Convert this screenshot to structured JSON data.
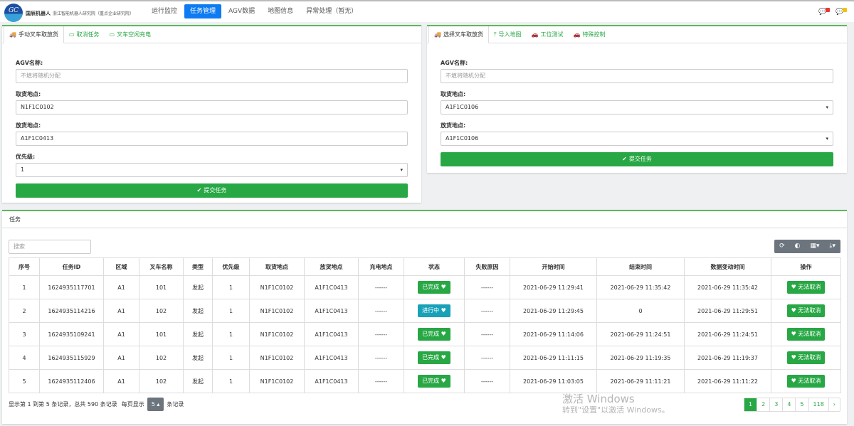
{
  "header": {
    "logo_text": "GC",
    "brand": "国辰机器人",
    "subtitle": "浙江智能机器人研究院（重点企业研究院）",
    "nav": [
      {
        "label": "运行监控"
      },
      {
        "label": "任务管理",
        "active": true
      },
      {
        "label": "AGV数据"
      },
      {
        "label": "地图信息"
      },
      {
        "label": "异常处理（暂无）"
      }
    ],
    "notifications": [
      {
        "icon": "message-icon",
        "color": "#e53935"
      },
      {
        "icon": "comment-icon",
        "color": "#f4c20d"
      }
    ]
  },
  "left_panel": {
    "tabs": [
      {
        "label": "手动叉车取放货",
        "icon": "truck-icon",
        "active": true
      },
      {
        "label": "取消任务",
        "icon": "battery-icon"
      },
      {
        "label": "叉车空闲充电",
        "icon": "battery-icon"
      }
    ],
    "fields": [
      {
        "label": "AGV名称:",
        "value": "",
        "placeholder": "不填将随机分配"
      },
      {
        "label": "取货地点:",
        "value": "N1F1C0102"
      },
      {
        "label": "放货地点:",
        "value": "A1F1C0413"
      },
      {
        "label": "优先级:",
        "value": "1",
        "select": true
      }
    ],
    "submit": "提交任务"
  },
  "right_panel": {
    "tabs": [
      {
        "label": "选择叉车取放货",
        "icon": "truck-icon",
        "active": true
      },
      {
        "label": "导入地图",
        "icon": "upload-icon"
      },
      {
        "label": "工位测试",
        "icon": "car-icon"
      },
      {
        "label": "特殊控制",
        "icon": "car-icon"
      }
    ],
    "fields": [
      {
        "label": "AGV名称:",
        "value": "",
        "placeholder": "不填将随机分配"
      },
      {
        "label": "取货地点:",
        "value": "A1F1C0106",
        "select": true
      },
      {
        "label": "放货地点:",
        "value": "A1F1C0106",
        "select": true
      }
    ],
    "submit": "提交任务"
  },
  "tasks": {
    "title": "任务",
    "search_placeholder": "搜索",
    "toolbar": [
      "refresh-icon",
      "toggle-icon",
      "columns-icon",
      "export-icon"
    ],
    "columns": [
      "序号",
      "任务ID",
      "区域",
      "叉车名称",
      "类型",
      "优先级",
      "取货地点",
      "放货地点",
      "充电地点",
      "状态",
      "失败原因",
      "开始时间",
      "结束时间",
      "数据变动时间",
      "操作"
    ],
    "rows": [
      [
        "1",
        "1624935117701",
        "A1",
        "101",
        "发起",
        "1",
        "N1F1C0102",
        "A1F1C0413",
        "------",
        "已完成",
        "------",
        "2021-06-29 11:29:41",
        "2021-06-29 11:35:42",
        "2021-06-29 11:35:42",
        "无法取消"
      ],
      [
        "2",
        "1624935114216",
        "A1",
        "102",
        "发起",
        "1",
        "N1F1C0102",
        "A1F1C0413",
        "------",
        "进行中",
        "------",
        "2021-06-29 11:29:45",
        "0",
        "2021-06-29 11:29:51",
        "无法取消"
      ],
      [
        "3",
        "1624935109241",
        "A1",
        "101",
        "发起",
        "1",
        "N1F1C0102",
        "A1F1C0413",
        "------",
        "已完成",
        "------",
        "2021-06-29 11:14:06",
        "2021-06-29 11:24:51",
        "2021-06-29 11:24:51",
        "无法取消"
      ],
      [
        "4",
        "1624935115929",
        "A1",
        "102",
        "发起",
        "1",
        "N1F1C0102",
        "A1F1C0413",
        "------",
        "已完成",
        "------",
        "2021-06-29 11:11:15",
        "2021-06-29 11:19:35",
        "2021-06-29 11:19:37",
        "无法取消"
      ],
      [
        "5",
        "1624935112406",
        "A1",
        "102",
        "发起",
        "1",
        "N1F1C0102",
        "A1F1C0413",
        "------",
        "已完成",
        "------",
        "2021-06-29 11:03:05",
        "2021-06-29 11:11:21",
        "2021-06-29 11:11:22",
        "无法取消"
      ]
    ],
    "status_colors": {
      "已完成": "#28a745",
      "进行中": "#17a2b8"
    },
    "footer": {
      "summary": "显示第 1 到第 5 条记录，总共 590 条记录",
      "per_page_label": "每页显示",
      "per_page": "5",
      "per_page_suffix": "条记录"
    },
    "pages": [
      "1",
      "2",
      "3",
      "4",
      "5",
      "118",
      "›"
    ],
    "current_page": "1"
  },
  "watermark": {
    "line1": "激活 Windows",
    "line2": "转到\"设置\"以激活 Windows。"
  }
}
